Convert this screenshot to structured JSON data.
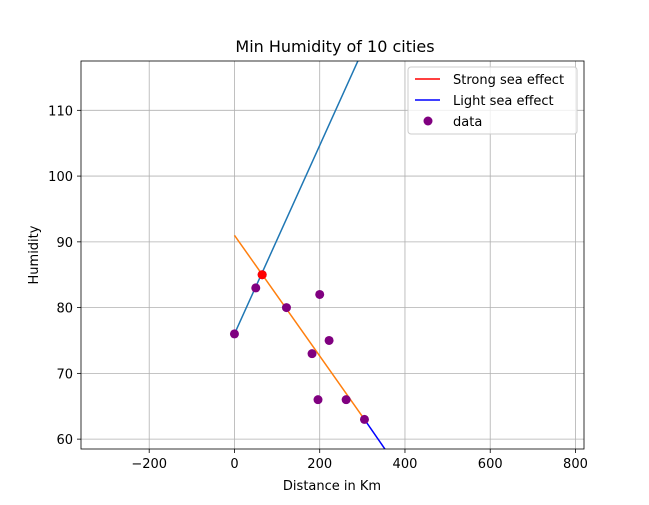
{
  "chart_data": {
    "type": "scatter",
    "title": "Min Humidity of 10 cities",
    "xlabel": "Distance in Km",
    "ylabel": "Humidity",
    "xlim": [
      -360,
      820
    ],
    "ylim": [
      58.5,
      117.5
    ],
    "xticks": [
      -200,
      0,
      200,
      400,
      600,
      800
    ],
    "xtick_labels": [
      "−200",
      "0",
      "200",
      "400",
      "600",
      "800"
    ],
    "yticks": [
      60,
      70,
      80,
      90,
      100,
      110
    ],
    "ytick_labels": [
      "60",
      "70",
      "80",
      "90",
      "100",
      "110"
    ],
    "grid": true,
    "legend_position": "top-right",
    "points": {
      "name": "data",
      "color": "#800080",
      "x": [
        0,
        50,
        65,
        122,
        182,
        196,
        200,
        222,
        262,
        305
      ],
      "y": [
        76,
        83,
        85,
        80,
        73,
        66,
        82,
        75,
        66,
        63
      ]
    },
    "highlight_point": {
      "x": 65,
      "y": 85,
      "color": "#ff0000"
    },
    "lines": [
      {
        "name": "Strong sea effect",
        "color": "#ff0000",
        "in_legend": true,
        "x": [],
        "y": []
      },
      {
        "name": "Light sea effect",
        "color": "#0000ff",
        "in_legend": true,
        "x": [
          305,
          355
        ],
        "y": [
          63,
          58.3
        ]
      },
      {
        "name": "",
        "color": "#1f77b4",
        "in_legend": false,
        "x": [
          0,
          300
        ],
        "y": [
          76,
          119
        ]
      },
      {
        "name": "",
        "color": "#ff7f0e",
        "in_legend": false,
        "x": [
          0,
          305
        ],
        "y": [
          91,
          63
        ]
      }
    ]
  }
}
